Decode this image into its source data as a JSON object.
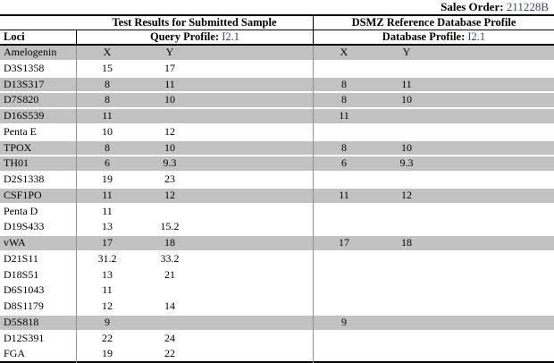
{
  "sales_order": {
    "label": "Sales Order:",
    "value": "211228B"
  },
  "table": {
    "section_headers": {
      "left": "Test Results for Submitted Sample",
      "right": "DSMZ Reference Database Profile"
    },
    "profile_headers": {
      "loci_label": "Loci",
      "query_label": "Query Profile:",
      "query_value": "I2.1",
      "database_label": "Database Profile:",
      "database_value": "I2.1"
    },
    "rows": [
      {
        "locus": "Amelogenin",
        "qx": "X",
        "qy": "Y",
        "dx": "X",
        "dy": "Y",
        "shaded": true
      },
      {
        "locus": "D3S1358",
        "qx": "15",
        "qy": "17",
        "dx": "",
        "dy": "",
        "shaded": false
      },
      {
        "locus": "D13S317",
        "qx": "8",
        "qy": "11",
        "dx": "8",
        "dy": "11",
        "shaded": true
      },
      {
        "locus": "D7S820",
        "qx": "8",
        "qy": "10",
        "dx": "8",
        "dy": "10",
        "shaded": true
      },
      {
        "locus": "D16S539",
        "qx": "11",
        "qy": "",
        "dx": "11",
        "dy": "",
        "shaded": true
      },
      {
        "locus": "Penta E",
        "qx": "10",
        "qy": "12",
        "dx": "",
        "dy": "",
        "shaded": false
      },
      {
        "locus": "TPOX",
        "qx": "8",
        "qy": "10",
        "dx": "8",
        "dy": "10",
        "shaded": true
      },
      {
        "locus": "TH01",
        "qx": "6",
        "qy": "9.3",
        "dx": "6",
        "dy": "9.3",
        "shaded": true
      },
      {
        "locus": "D2S1338",
        "qx": "19",
        "qy": "23",
        "dx": "",
        "dy": "",
        "shaded": false
      },
      {
        "locus": "CSF1PO",
        "qx": "11",
        "qy": "12",
        "dx": "11",
        "dy": "12",
        "shaded": true
      },
      {
        "locus": "Penta D",
        "qx": "11",
        "qy": "",
        "dx": "",
        "dy": "",
        "shaded": false
      },
      {
        "locus": "D19S433",
        "qx": "13",
        "qy": "15.2",
        "dx": "",
        "dy": "",
        "shaded": false
      },
      {
        "locus": "vWA",
        "qx": "17",
        "qy": "18",
        "dx": "17",
        "dy": "18",
        "shaded": true
      },
      {
        "locus": "D21S11",
        "qx": "31.2",
        "qy": "33.2",
        "dx": "",
        "dy": "",
        "shaded": false
      },
      {
        "locus": "D18S51",
        "qx": "13",
        "qy": "21",
        "dx": "",
        "dy": "",
        "shaded": false
      },
      {
        "locus": "D6S1043",
        "qx": "11",
        "qy": "",
        "dx": "",
        "dy": "",
        "shaded": false
      },
      {
        "locus": "D8S1179",
        "qx": "12",
        "qy": "14",
        "dx": "",
        "dy": "",
        "shaded": false
      },
      {
        "locus": "D5S818",
        "qx": "9",
        "qy": "",
        "dx": "9",
        "dy": "",
        "shaded": true
      },
      {
        "locus": "D12S391",
        "qx": "22",
        "qy": "24",
        "dx": "",
        "dy": "",
        "shaded": false
      },
      {
        "locus": "FGA",
        "qx": "19",
        "qy": "22",
        "dx": "",
        "dy": "",
        "shaded": false
      }
    ],
    "colors": {
      "shaded_row": "#c2c2c2",
      "grid_line": "#8f8f8f",
      "border": "#000000",
      "accent_value_text": "#3b4559"
    }
  }
}
